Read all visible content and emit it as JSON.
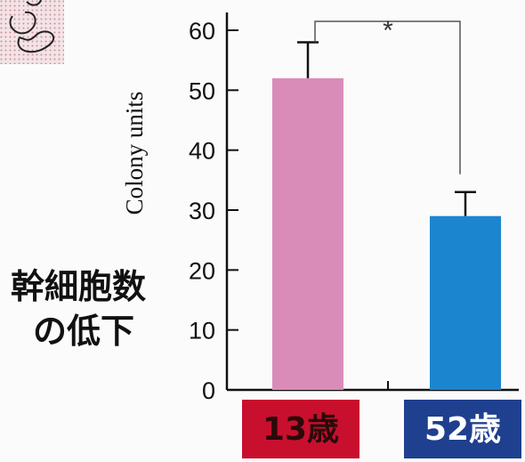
{
  "chart_data": {
    "type": "bar",
    "categories": [
      "13歳",
      "52歳"
    ],
    "values": [
      52,
      29
    ],
    "errors": [
      6,
      4
    ],
    "ylabel": "Colony units",
    "ylim": [
      0,
      60
    ],
    "yticks": [
      "0",
      "10",
      "20",
      "30",
      "40",
      "50",
      "60"
    ],
    "significance": "*",
    "side_annotation": [
      "幹細胞数",
      "の低下"
    ],
    "bar_colors": [
      "#d98cb8",
      "#1b86cf"
    ],
    "category_label_colors": [
      "#c8102e",
      "#1f3f8f"
    ],
    "category_text_colors": [
      "#2a0a0a",
      "#ffffff"
    ]
  },
  "decor": {
    "corner_icon": "cell-sketch-icon"
  }
}
